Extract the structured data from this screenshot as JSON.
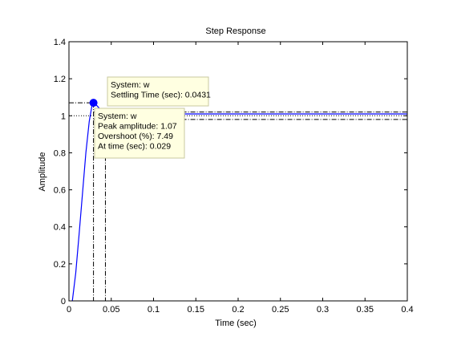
{
  "chart_data": {
    "type": "line",
    "title": "Step Response",
    "xlabel": "Time (sec)",
    "ylabel": "Amplitude",
    "xlim": [
      0,
      0.4
    ],
    "ylim": [
      0,
      1.4
    ],
    "x_ticks": [
      0,
      0.05,
      0.1,
      0.15,
      0.2,
      0.25,
      0.3,
      0.35,
      0.4
    ],
    "x_tick_labels": [
      "0",
      "0.05",
      "0.1",
      "0.15",
      "0.2",
      "0.25",
      "0.3",
      "0.35",
      "0.4"
    ],
    "y_ticks": [
      0,
      0.2,
      0.4,
      0.6,
      0.8,
      1,
      1.2,
      1.4
    ],
    "y_tick_labels": [
      "0",
      "0.2",
      "0.4",
      "0.6",
      "0.8",
      "1",
      "1.2",
      "1.4"
    ],
    "grid": false,
    "series": [
      {
        "color": "#0000ff",
        "x": [
          0.004,
          0.008,
          0.012,
          0.016,
          0.02,
          0.024,
          0.027,
          0.029,
          0.032,
          0.036,
          0.04,
          0.0431,
          0.05,
          0.06,
          0.08,
          0.1,
          0.15,
          0.2,
          0.25,
          0.3,
          0.35,
          0.4
        ],
        "y": [
          0.0,
          0.15,
          0.36,
          0.58,
          0.8,
          0.97,
          1.05,
          1.07,
          1.06,
          1.04,
          1.025,
          1.02,
          1.015,
          1.012,
          1.01,
          1.01,
          1.01,
          1.01,
          1.01,
          1.01,
          1.01,
          1.01
        ]
      }
    ],
    "reference_lines": {
      "final_value": 1.0,
      "settling_band": [
        0.98,
        1.02
      ],
      "peak_amplitude": 1.07,
      "peak_time": 0.029,
      "settling_time": 0.0431
    },
    "peak_marker": {
      "x": 0.029,
      "y": 1.07,
      "color": "#0000ff"
    },
    "annotations": [
      {
        "id": "settling",
        "lines": [
          "System: w",
          "Settling Time (sec): 0.0431"
        ]
      },
      {
        "id": "peak",
        "lines": [
          "System: w",
          "Peak amplitude: 1.07",
          "Overshoot (%): 7.49",
          "At time (sec): 0.029"
        ]
      }
    ],
    "colors": {
      "axes": "#000000",
      "line": "#0000ff",
      "tooltip_bg": "#ffffe1",
      "tooltip_border": "#c8c8a0"
    }
  }
}
